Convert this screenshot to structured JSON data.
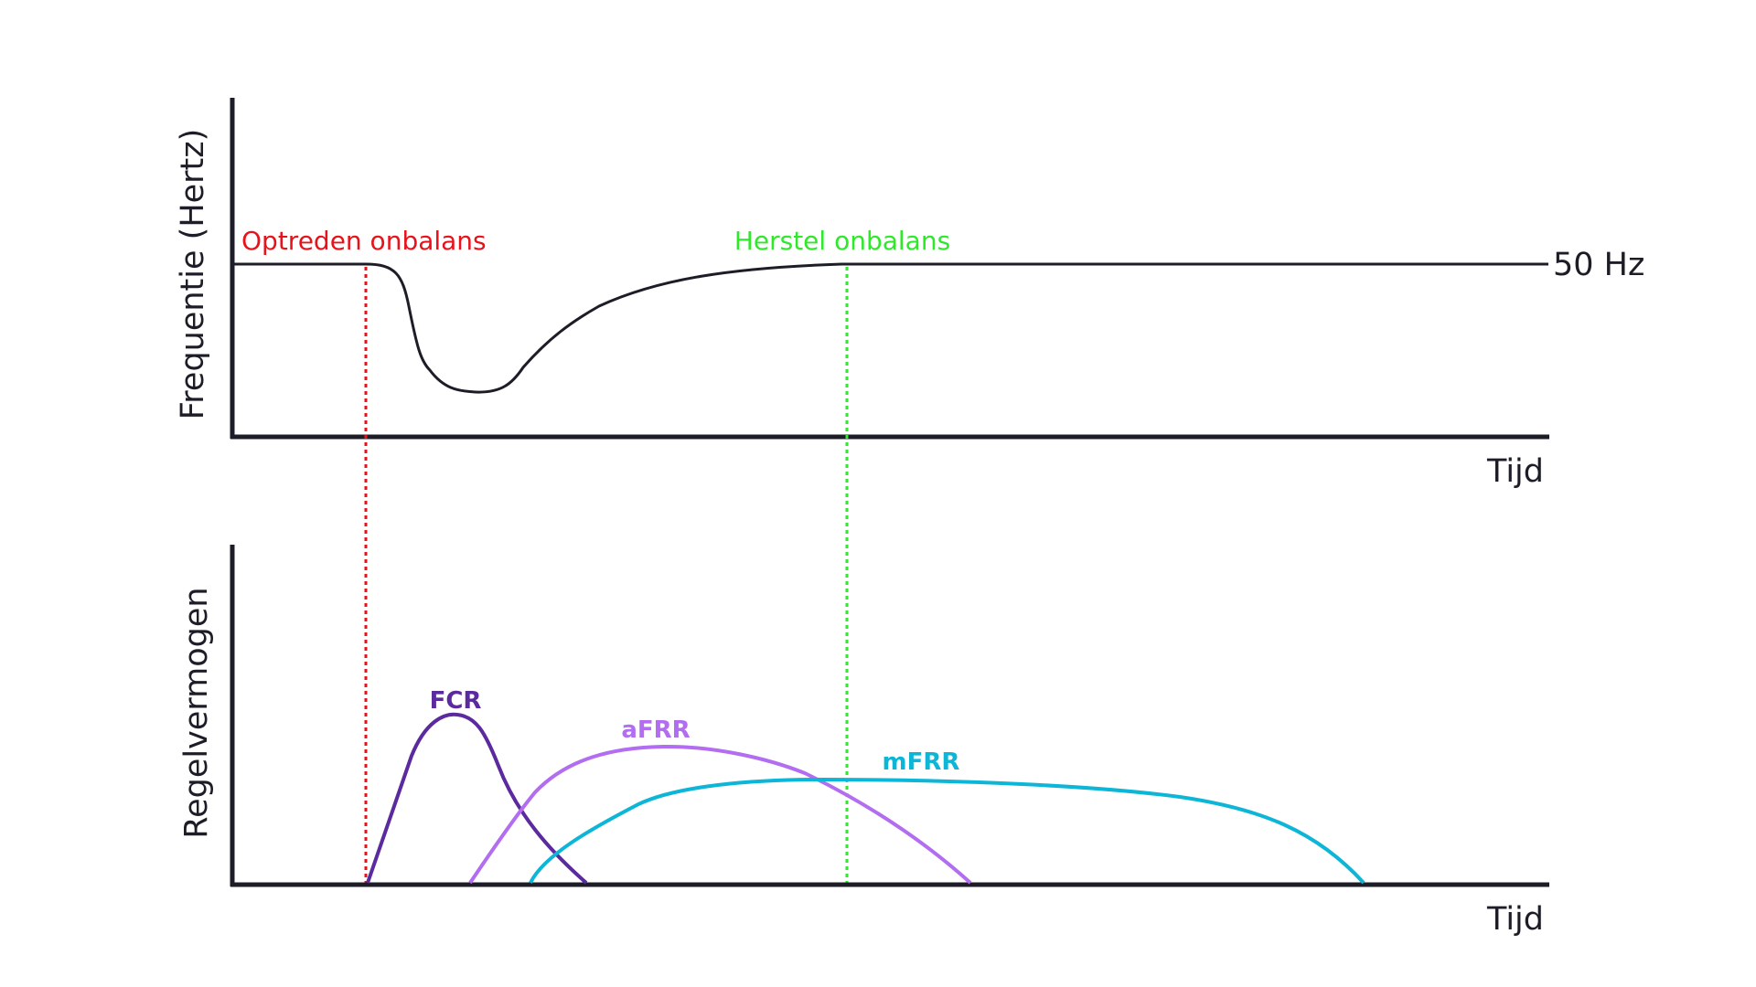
{
  "colors": {
    "axis": "#1d1d28",
    "frequency_curve": "#1d1d28",
    "event_start": "#e8121b",
    "event_recovery": "#2ee82a",
    "fcr": "#5b2a9e",
    "afrr": "#b26df0",
    "mfrr": "#0db6d6"
  },
  "top_panel": {
    "y_axis_label": "Frequentie (Hertz)",
    "x_axis_label": "Tijd",
    "reference_label": "50 Hz"
  },
  "bottom_panel": {
    "y_axis_label": "Regelvermogen",
    "x_axis_label": "Tijd"
  },
  "events": {
    "start_label": "Optreden onbalans",
    "recovery_label": "Herstel onbalans"
  },
  "series": {
    "fcr": "FCR",
    "afrr": "aFRR",
    "mfrr": "mFRR"
  }
}
